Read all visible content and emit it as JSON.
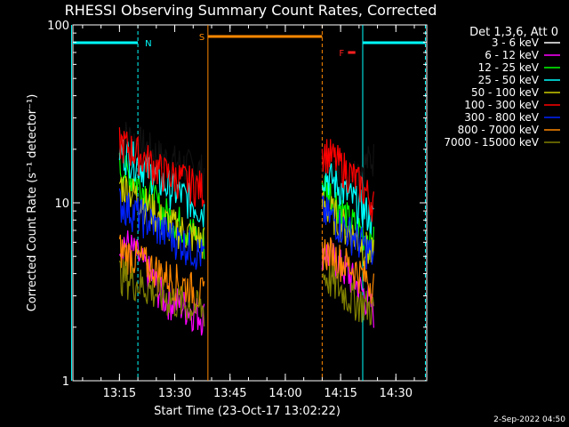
{
  "chart_data": {
    "type": "line",
    "title": "RHESSI Observing Summary Count Rates, Corrected",
    "xlabel": "Start Time (23-Oct-17 13:02:22)",
    "ylabel": "Corrected Count Rate (s⁻¹ detector⁻¹)",
    "yscale": "log",
    "ylim": [
      1,
      100
    ],
    "xlim_minutes_after_start": [
      0,
      96
    ],
    "x_ticks": [
      "13:15",
      "13:30",
      "13:45",
      "14:00",
      "14:15",
      "14:30"
    ],
    "y_ticks": [
      "1",
      "10",
      "100"
    ],
    "footer": "2-Sep-2022 04:50",
    "legend": {
      "header": "Det 1,3,6, Att 0",
      "position": "outside-right"
    },
    "flags": [
      {
        "label": "N",
        "color": "#00ffff",
        "ranges": [
          [
            "13:02",
            "13:20"
          ],
          [
            "14:21",
            "14:38"
          ]
        ]
      },
      {
        "label": "S",
        "color": "#ff8800",
        "ranges": [
          [
            "13:39",
            "14:10"
          ]
        ]
      },
      {
        "label": "F",
        "color": "#ff2020",
        "ranges": [
          [
            "14:17",
            "14:19"
          ]
        ]
      }
    ],
    "vlines": [
      {
        "time": "13:02",
        "color": "#00ffff",
        "style": "solid"
      },
      {
        "time": "13:20",
        "color": "#00ffff",
        "style": "dashed"
      },
      {
        "time": "13:39",
        "color": "#ff8800",
        "style": "solid"
      },
      {
        "time": "14:10",
        "color": "#ff8800",
        "style": "dashed"
      },
      {
        "time": "14:21",
        "color": "#00ffff",
        "style": "solid"
      },
      {
        "time": "14:38",
        "color": "#00ffff",
        "style": "dashed"
      }
    ],
    "segments": [
      [
        "13:15",
        "13:38"
      ],
      [
        "14:10",
        "14:24"
      ]
    ],
    "series": [
      {
        "name": "3 - 6 keV",
        "color": "#000000",
        "seg1": [
          25,
          18,
          15
        ],
        "seg2": [
          17,
          14,
          18
        ]
      },
      {
        "name": "6 - 12 keV",
        "color": "#ff00ff",
        "seg1": [
          6.5,
          3,
          2.3
        ],
        "seg2": [
          5.5,
          4,
          2.5
        ]
      },
      {
        "name": "12 - 25 keV",
        "color": "#00ff00",
        "seg1": [
          16,
          9,
          6
        ],
        "seg2": [
          13,
          8,
          6
        ]
      },
      {
        "name": "25 - 50 keV",
        "color": "#00ffff",
        "seg1": [
          20,
          13,
          9
        ],
        "seg2": [
          15,
          11,
          8
        ]
      },
      {
        "name": "50 - 100 keV",
        "color": "#cccc00",
        "seg1": [
          13,
          8,
          6
        ],
        "seg2": [
          10,
          7,
          5
        ]
      },
      {
        "name": "100 - 300 keV",
        "color": "#ff0000",
        "seg1": [
          22,
          15,
          12
        ],
        "seg2": [
          20,
          15,
          10
        ]
      },
      {
        "name": "300 - 800 keV",
        "color": "#0022ff",
        "seg1": [
          10,
          7,
          5
        ],
        "seg2": [
          9,
          7,
          5
        ]
      },
      {
        "name": "800 - 7000 keV",
        "color": "#ff8800",
        "seg1": [
          5.5,
          4,
          3
        ],
        "seg2": [
          5.5,
          4.5,
          3.5
        ]
      },
      {
        "name": "7000 - 15000 keV",
        "color": "#808000",
        "seg1": [
          4,
          3,
          2.5
        ],
        "seg2": [
          4,
          3,
          2.5
        ]
      }
    ]
  }
}
